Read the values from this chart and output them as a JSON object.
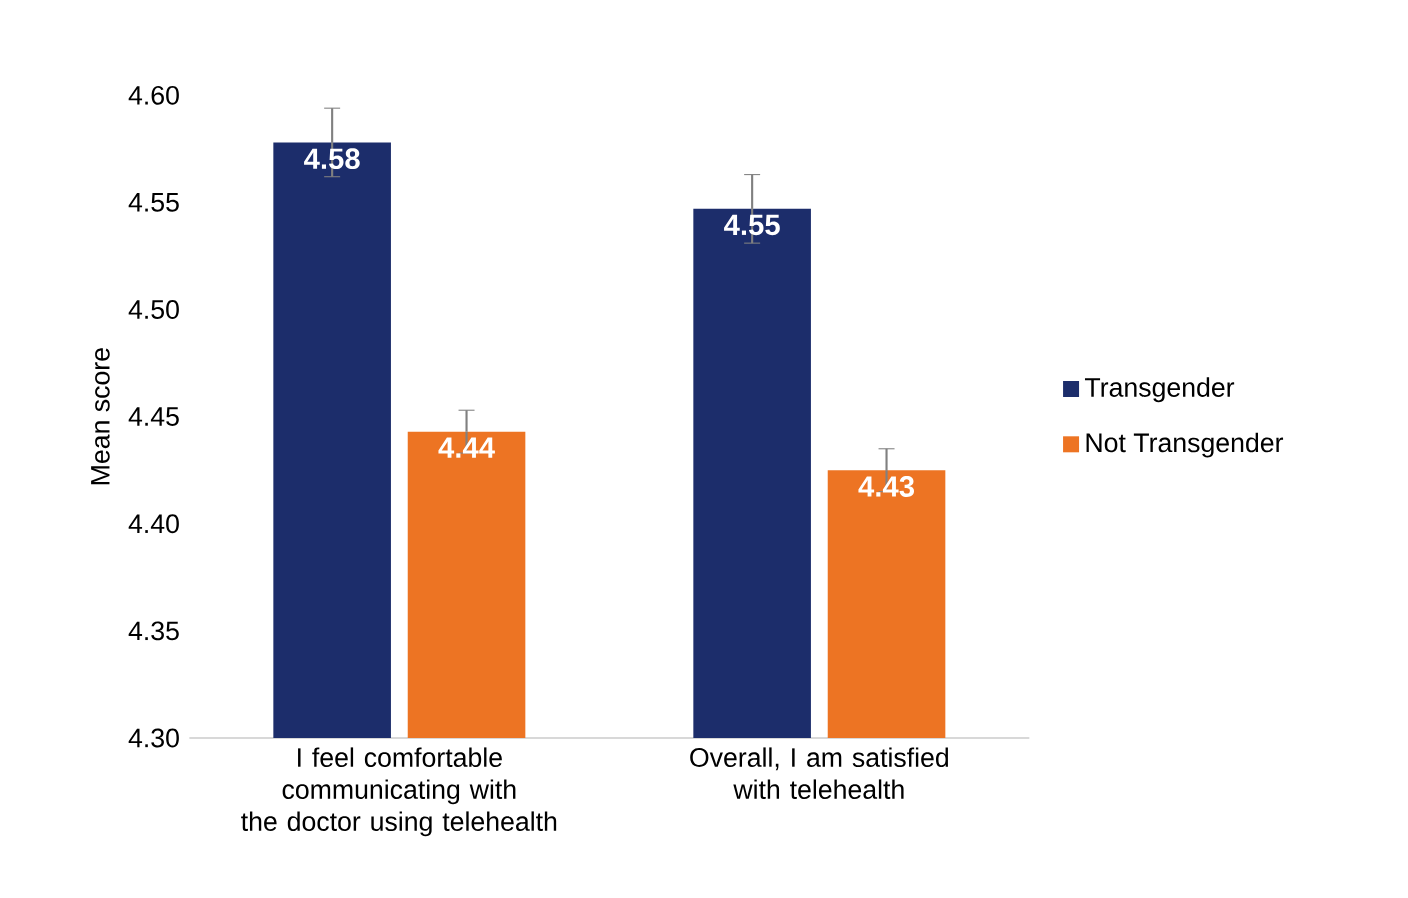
{
  "chart_data": {
    "type": "bar",
    "ylabel": "Mean score",
    "categories": [
      "I feel comfortable communicating with the doctor using telehealth",
      "Overall, I am satisfied with telehealth"
    ],
    "series": [
      {
        "name": "Transgender",
        "color": "#1c2d6b",
        "values": [
          4.578,
          4.547
        ],
        "errors": [
          0.016,
          0.016
        ],
        "value_labels": [
          "4.58",
          "4.55"
        ]
      },
      {
        "name": "Not Transgender",
        "color": "#ed7423",
        "values": [
          4.443,
          4.425
        ],
        "errors": [
          0.01,
          0.01
        ],
        "value_labels": [
          "4.44",
          "4.43"
        ]
      }
    ],
    "ylim": [
      4.3,
      4.6
    ],
    "yticks": [
      {
        "value": 4.3,
        "label": "4.30"
      },
      {
        "value": 4.35,
        "label": "4.35"
      },
      {
        "value": 4.4,
        "label": "4.40"
      },
      {
        "value": 4.45,
        "label": "4.45"
      },
      {
        "value": 4.5,
        "label": "4.50"
      },
      {
        "value": 4.55,
        "label": "4.55"
      },
      {
        "value": 4.6,
        "label": "4.60"
      }
    ],
    "grid": false,
    "legend": "right"
  }
}
